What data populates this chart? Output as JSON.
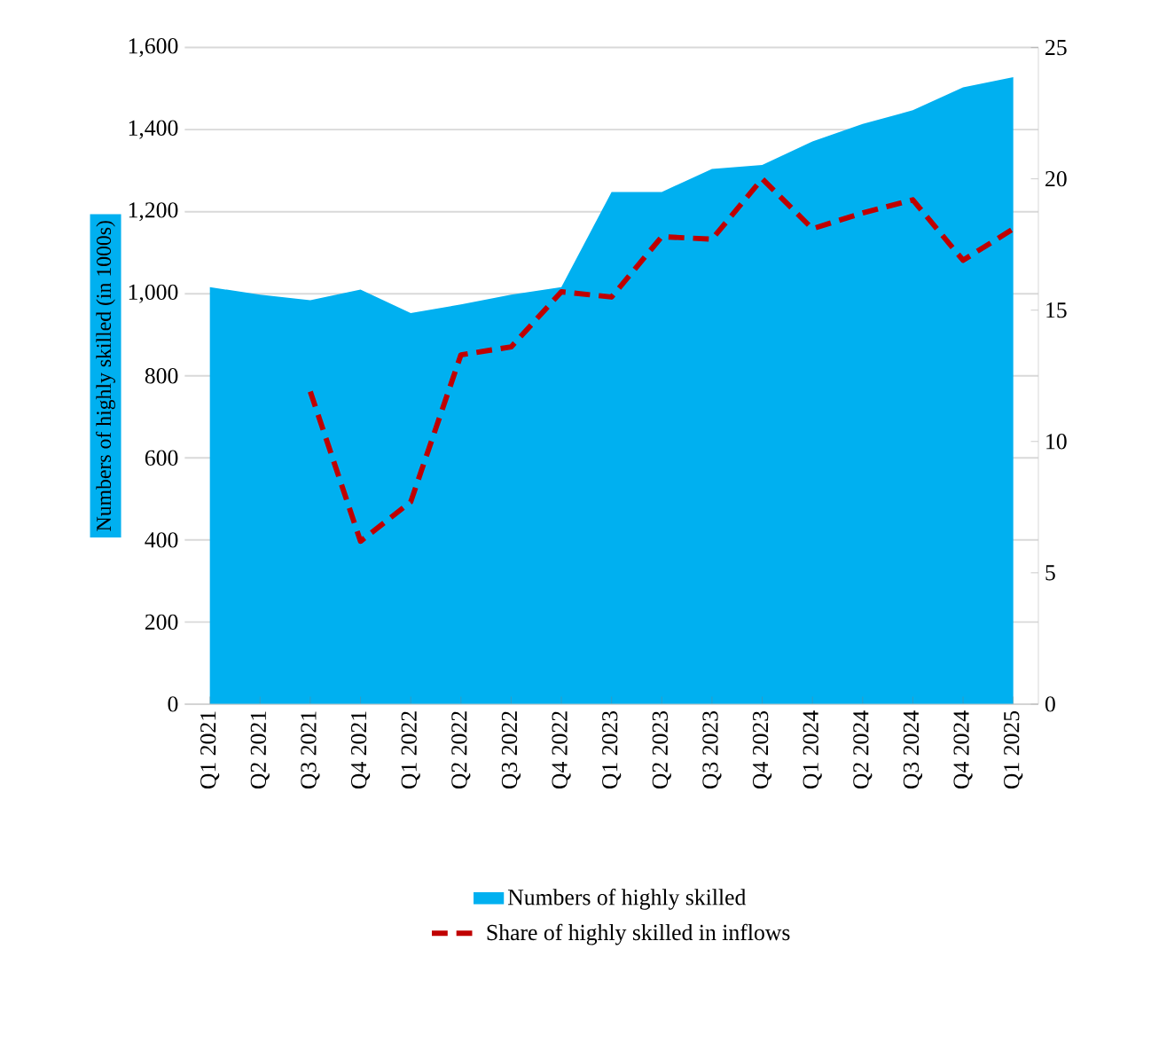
{
  "chart_data": {
    "type": "area",
    "ylabel": "Numbers of highly skilled (in 1000s)",
    "categories": [
      "Q1 2021",
      "Q2 2021",
      "Q3 2021",
      "Q4 2021",
      "Q1 2022",
      "Q2 2022",
      "Q3 2022",
      "Q4 2022",
      "Q1 2023",
      "Q2 2023",
      "Q3 2023",
      "Q4 2023",
      "Q1 2024",
      "Q2 2024",
      "Q3 2024",
      "Q4 2024",
      "Q1 2025"
    ],
    "series": [
      {
        "name": "Numbers of highly skilled",
        "color": "#00b0f0",
        "values": [
          1016,
          998,
          984,
          1010,
          953,
          974,
          998,
          1016,
          1248,
          1248,
          1304,
          1314,
          1371,
          1414,
          1447,
          1503,
          1528
        ]
      },
      {
        "name": "Share of highly skilled in inflows",
        "type": "line",
        "axis": "y2",
        "color": "#c00000",
        "line_style": "dashed",
        "values": [
          null,
          null,
          11.9,
          6.2,
          7.7,
          13.3,
          13.6,
          15.7,
          15.5,
          17.8,
          17.7,
          20.0,
          18.1,
          18.7,
          19.2,
          16.9,
          18.1
        ]
      }
    ],
    "ylim": [
      0,
      1600
    ],
    "yticks": [
      0,
      200,
      400,
      600,
      800,
      {
        "value": 1000,
        "label": "1,000"
      },
      {
        "value": 1200,
        "label": "1,200"
      },
      {
        "value": 1400,
        "label": "1,400"
      },
      {
        "value": 1600,
        "label": "1,600"
      }
    ],
    "y2lim": [
      0,
      25
    ],
    "y2ticks": [
      0,
      5,
      10,
      15,
      20,
      25
    ],
    "grid": "y",
    "legend": "bottom"
  }
}
